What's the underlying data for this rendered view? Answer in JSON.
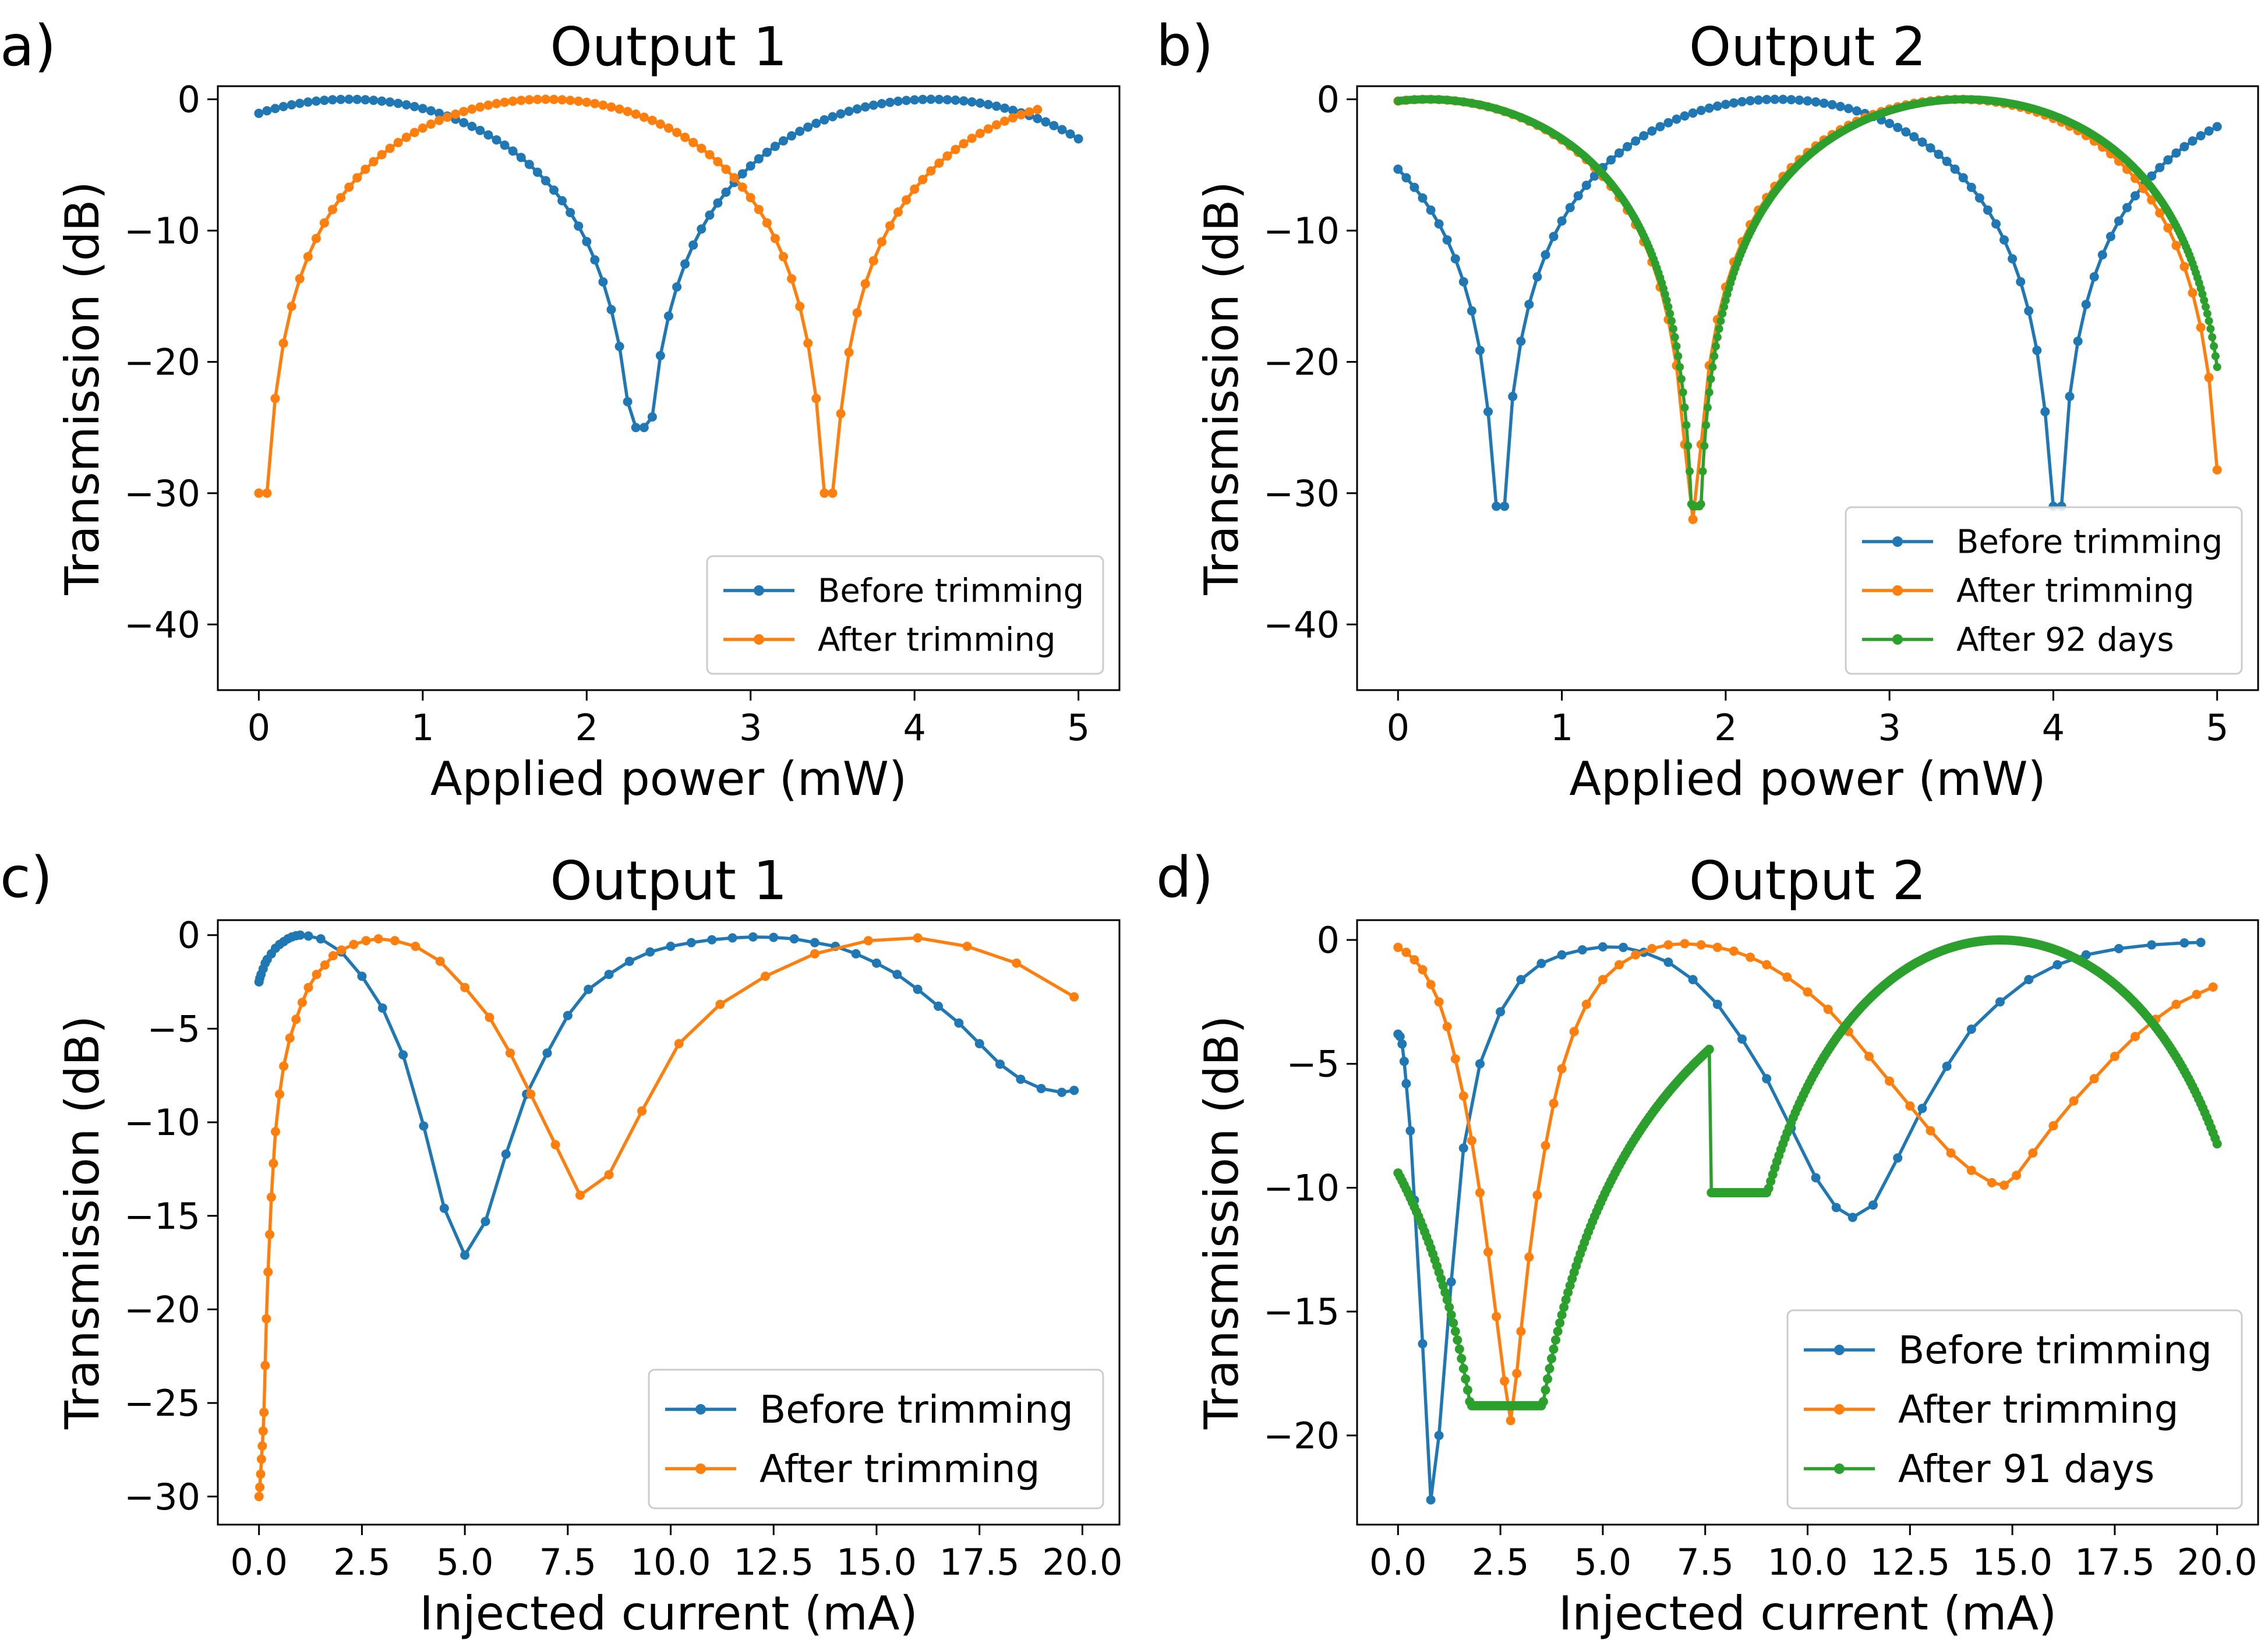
{
  "figure": {
    "panel_labels": [
      "a)",
      "b)",
      "c)",
      "d)"
    ]
  },
  "chart_data": [
    {
      "type": "line",
      "panel": "a)",
      "title": "Output 1",
      "xlabel": "Applied power (mW)",
      "ylabel": "Transmission (dB)",
      "xlim": [
        -0.25,
        5.25
      ],
      "ylim": [
        -45,
        1
      ],
      "xticks": [
        0,
        1,
        2,
        3,
        4,
        5
      ],
      "xtick_labels": [
        "0",
        "1",
        "2",
        "3",
        "4",
        "5"
      ],
      "yticks": [
        0,
        -10,
        -20,
        -30,
        -40
      ],
      "ytick_labels": [
        "0",
        "−10",
        "−20",
        "−30",
        "−40"
      ],
      "grid": false,
      "legend_position": "lower right",
      "series": [
        {
          "name": "Before trimming",
          "color": "#1f77b4",
          "model": {
            "kind": "cos",
            "x0": 0.55,
            "x1": 2.33,
            "x_end": 5.0,
            "floor": -25,
            "step": 0.05
          }
        },
        {
          "name": "After trimming",
          "color": "#ff7f0e",
          "model": {
            "kind": "cos",
            "x0": 1.75,
            "x1": 3.48,
            "x_start": 0.0,
            "x_end": 4.75,
            "floor": -30,
            "step": 0.05
          }
        }
      ]
    },
    {
      "type": "line",
      "panel": "b)",
      "title": "Output 2",
      "xlabel": "Applied power (mW)",
      "ylabel": "Transmission (dB)",
      "xlim": [
        -0.25,
        5.25
      ],
      "ylim": [
        -45,
        1
      ],
      "xticks": [
        0,
        1,
        2,
        3,
        4,
        5
      ],
      "xtick_labels": [
        "0",
        "1",
        "2",
        "3",
        "4",
        "5"
      ],
      "yticks": [
        0,
        -10,
        -20,
        -30,
        -40
      ],
      "ytick_labels": [
        "0",
        "−10",
        "−20",
        "−30",
        "−40"
      ],
      "grid": false,
      "legend_position": "lower right",
      "series": [
        {
          "name": "Before trimming",
          "color": "#1f77b4",
          "model": {
            "kind": "sin",
            "x0": 0.62,
            "x1": 2.32,
            "x_end": 5.0,
            "floor": -31,
            "step": 0.05
          }
        },
        {
          "name": "After trimming",
          "color": "#ff7f0e",
          "model": {
            "kind": "sin",
            "x0": 1.8,
            "x1": 3.42,
            "x_end": 5.0,
            "floor": -32,
            "step": 0.05
          }
        },
        {
          "name": "After 92 days",
          "color": "#2ca02c",
          "model": {
            "kind": "sin",
            "x0": 1.82,
            "x1": 3.46,
            "x_end": 5.0,
            "floor": -31,
            "step": 0.01
          }
        }
      ]
    },
    {
      "type": "line",
      "panel": "c)",
      "title": "Output 1",
      "xlabel": "Injected current (mA)",
      "ylabel": "Transmission (dB)",
      "xlim": [
        -1.0,
        20.9
      ],
      "ylim": [
        -31.5,
        0.8
      ],
      "xticks": [
        0,
        2.5,
        5,
        7.5,
        10,
        12.5,
        15,
        17.5,
        20
      ],
      "xtick_labels": [
        "0.0",
        "2.5",
        "5.0",
        "7.5",
        "10.0",
        "12.5",
        "15.0",
        "17.5",
        "20.0"
      ],
      "yticks": [
        0,
        -5,
        -10,
        -15,
        -20,
        -25,
        -30
      ],
      "ytick_labels": [
        "0",
        "−5",
        "−10",
        "−15",
        "−20",
        "−25",
        "−30"
      ],
      "grid": false,
      "legend_position": "lower right",
      "series": [
        {
          "name": "Before trimming",
          "color": "#1f77b4",
          "x": [
            0.0,
            0.02,
            0.05,
            0.1,
            0.15,
            0.2,
            0.3,
            0.4,
            0.5,
            0.6,
            0.7,
            0.8,
            0.9,
            1.0,
            1.2,
            1.5,
            2.0,
            2.5,
            3.0,
            3.5,
            4.0,
            4.5,
            5.0,
            5.5,
            6.0,
            6.5,
            7.0,
            7.5,
            8.0,
            8.5,
            9.0,
            9.5,
            10.0,
            10.5,
            11.0,
            11.5,
            12.0,
            12.5,
            13.0,
            13.5,
            14.0,
            14.5,
            15.0,
            15.5,
            16.0,
            16.5,
            17.0,
            17.5,
            18.0,
            18.5,
            19.0,
            19.5,
            19.8
          ],
          "y": [
            -2.5,
            -2.3,
            -2.1,
            -1.8,
            -1.5,
            -1.3,
            -1.0,
            -0.7,
            -0.5,
            -0.35,
            -0.2,
            -0.1,
            -0.03,
            0.0,
            -0.05,
            -0.2,
            -0.9,
            -2.2,
            -3.9,
            -6.4,
            -10.2,
            -14.6,
            -17.1,
            -15.3,
            -11.7,
            -8.5,
            -6.3,
            -4.3,
            -2.9,
            -2.1,
            -1.4,
            -0.9,
            -0.6,
            -0.4,
            -0.25,
            -0.15,
            -0.1,
            -0.12,
            -0.2,
            -0.4,
            -0.6,
            -1.0,
            -1.5,
            -2.1,
            -2.9,
            -3.8,
            -4.7,
            -5.8,
            -6.9,
            -7.7,
            -8.2,
            -8.4,
            -8.3
          ]
        },
        {
          "name": "After trimming",
          "color": "#ff7f0e",
          "x": [
            0.0,
            0.02,
            0.04,
            0.06,
            0.08,
            0.1,
            0.12,
            0.15,
            0.18,
            0.22,
            0.26,
            0.3,
            0.35,
            0.4,
            0.5,
            0.6,
            0.75,
            0.9,
            1.05,
            1.2,
            1.4,
            1.6,
            1.8,
            2.0,
            2.3,
            2.6,
            2.9,
            3.3,
            3.8,
            4.4,
            5.0,
            5.6,
            6.1,
            6.6,
            7.2,
            7.8,
            8.5,
            9.3,
            10.2,
            11.2,
            12.3,
            13.5,
            14.8,
            16.0,
            17.2,
            18.4,
            19.8
          ],
          "y": [
            -30.0,
            -29.5,
            -28.8,
            -28.0,
            -27.3,
            -26.5,
            -25.5,
            -23.0,
            -20.5,
            -18.0,
            -16.0,
            -14.0,
            -12.2,
            -10.5,
            -8.5,
            -7.0,
            -5.5,
            -4.5,
            -3.6,
            -2.8,
            -2.1,
            -1.6,
            -1.1,
            -0.8,
            -0.5,
            -0.3,
            -0.2,
            -0.3,
            -0.6,
            -1.4,
            -2.8,
            -4.4,
            -6.3,
            -8.5,
            -11.2,
            -13.9,
            -12.8,
            -9.4,
            -5.8,
            -3.7,
            -2.2,
            -1.0,
            -0.3,
            -0.15,
            -0.6,
            -1.5,
            -3.3
          ]
        }
      ]
    },
    {
      "type": "line",
      "panel": "d)",
      "title": "Output 2",
      "xlabel": "Injected current (mA)",
      "ylabel": "Transmission (dB)",
      "xlim": [
        -1.0,
        21.0
      ],
      "ylim": [
        -23.6,
        0.8
      ],
      "xticks": [
        0,
        2.5,
        5,
        7.5,
        10,
        12.5,
        15,
        17.5,
        20
      ],
      "xtick_labels": [
        "0.0",
        "2.5",
        "5.0",
        "7.5",
        "10.0",
        "12.5",
        "15.0",
        "17.5",
        "20.0"
      ],
      "yticks": [
        0,
        -5,
        -10,
        -15,
        -20
      ],
      "ytick_labels": [
        "0",
        "−5",
        "−10",
        "−15",
        "−20"
      ],
      "grid": false,
      "legend_position": "lower right",
      "series": [
        {
          "name": "Before trimming",
          "color": "#1f77b4",
          "x": [
            0.0,
            0.05,
            0.1,
            0.15,
            0.2,
            0.3,
            0.4,
            0.6,
            0.8,
            1.0,
            1.3,
            1.6,
            2.0,
            2.5,
            3.0,
            3.5,
            4.0,
            4.5,
            5.0,
            5.5,
            6.0,
            6.6,
            7.2,
            7.8,
            8.4,
            9.0,
            9.6,
            10.2,
            10.7,
            11.1,
            11.6,
            12.2,
            12.8,
            13.4,
            14.0,
            14.7,
            15.4,
            16.1,
            16.8,
            17.6,
            18.4,
            19.2,
            19.6
          ],
          "y": [
            -3.8,
            -3.9,
            -4.2,
            -4.9,
            -5.8,
            -7.7,
            -10.5,
            -16.3,
            -22.6,
            -20.0,
            -13.8,
            -8.4,
            -5.0,
            -2.9,
            -1.6,
            -0.95,
            -0.6,
            -0.4,
            -0.28,
            -0.3,
            -0.5,
            -0.9,
            -1.6,
            -2.6,
            -4.0,
            -5.6,
            -7.6,
            -9.6,
            -10.8,
            -11.2,
            -10.7,
            -8.8,
            -6.8,
            -5.1,
            -3.6,
            -2.5,
            -1.6,
            -1.0,
            -0.6,
            -0.35,
            -0.2,
            -0.12,
            -0.1
          ]
        },
        {
          "name": "After trimming",
          "color": "#ff7f0e",
          "x": [
            0.0,
            0.2,
            0.4,
            0.6,
            0.8,
            1.0,
            1.2,
            1.4,
            1.6,
            1.8,
            2.0,
            2.2,
            2.4,
            2.6,
            2.75,
            2.9,
            3.0,
            3.2,
            3.4,
            3.6,
            3.8,
            4.0,
            4.3,
            4.6,
            5.0,
            5.4,
            5.8,
            6.2,
            6.6,
            7.0,
            7.4,
            7.8,
            8.2,
            8.6,
            9.0,
            9.5,
            10.0,
            10.5,
            11.0,
            11.5,
            12.0,
            12.5,
            13.0,
            13.5,
            14.0,
            14.5,
            14.8,
            15.1,
            15.5,
            16.0,
            16.5,
            17.0,
            17.5,
            18.0,
            18.5,
            19.0,
            19.5,
            19.9
          ],
          "y": [
            -0.3,
            -0.5,
            -0.8,
            -1.2,
            -1.8,
            -2.5,
            -3.5,
            -4.8,
            -6.3,
            -8.1,
            -10.2,
            -12.6,
            -15.2,
            -17.8,
            -19.4,
            -17.5,
            -15.8,
            -12.8,
            -10.3,
            -8.3,
            -6.6,
            -5.2,
            -3.7,
            -2.6,
            -1.6,
            -1.0,
            -0.6,
            -0.35,
            -0.2,
            -0.15,
            -0.2,
            -0.3,
            -0.45,
            -0.7,
            -1.0,
            -1.5,
            -2.1,
            -2.8,
            -3.7,
            -4.7,
            -5.7,
            -6.7,
            -7.7,
            -8.6,
            -9.3,
            -9.8,
            -9.9,
            -9.5,
            -8.6,
            -7.5,
            -6.5,
            -5.6,
            -4.7,
            -3.9,
            -3.2,
            -2.6,
            -2.2,
            -1.9
          ]
        },
        {
          "name": "After 91 days",
          "color": "#2ca02c",
          "model": {
            "kind": "sin",
            "x0": 2.65,
            "x1": 14.7,
            "peak": 7.6,
            "x_start": 0.0,
            "x_end": 20.0,
            "floor": -18.8,
            "floor2": -10.2,
            "step": 0.05
          }
        }
      ]
    }
  ]
}
